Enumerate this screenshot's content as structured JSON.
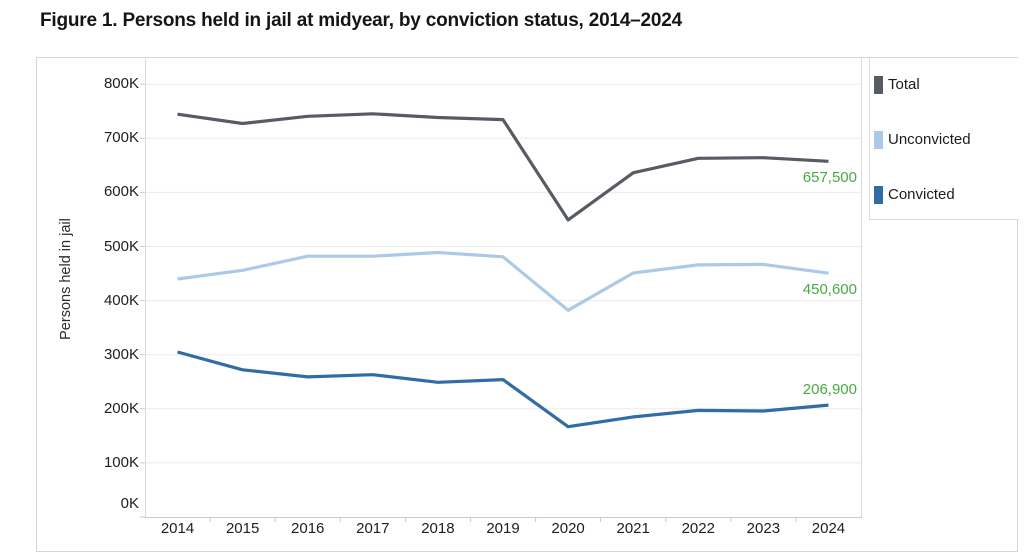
{
  "title": "Figure 1. Persons held in jail at midyear, by conviction status, 2014–2024",
  "chart_data": {
    "type": "line",
    "title": "Figure 1. Persons held in jail at midyear, by conviction status, 2014–2024",
    "xlabel": "",
    "ylabel": "Persons held in jail",
    "x": [
      "2014",
      "2015",
      "2016",
      "2017",
      "2018",
      "2019",
      "2020",
      "2021",
      "2022",
      "2023",
      "2024"
    ],
    "ylim": [
      0,
      800000
    ],
    "ytick_labels": [
      "800K",
      "700K",
      "600K",
      "500K",
      "400K",
      "300K",
      "200K",
      "100K",
      "0K"
    ],
    "grid": true,
    "legend_position": "right",
    "end_label_color": "#49A942",
    "series": [
      {
        "name": "Total",
        "color": "#575C64",
        "values": [
          744600,
          727400,
          740700,
          745200,
          738400,
          734500,
          549100,
          636300,
          663100,
          664200,
          657500
        ],
        "end_label": "657,500",
        "end_label_side": "below"
      },
      {
        "name": "Unconvicted",
        "color": "#ABCAE8",
        "values": [
          440000,
          456000,
          482000,
          482000,
          489000,
          481000,
          382000,
          451000,
          466000,
          467000,
          450600
        ],
        "end_label": "450,600",
        "end_label_side": "below"
      },
      {
        "name": "Convicted",
        "color": "#2F6DA4",
        "values": [
          305000,
          272000,
          259000,
          263000,
          249000,
          254000,
          167000,
          185000,
          197000,
          196000,
          206900
        ],
        "end_label": "206,900",
        "end_label_side": "above"
      }
    ]
  }
}
